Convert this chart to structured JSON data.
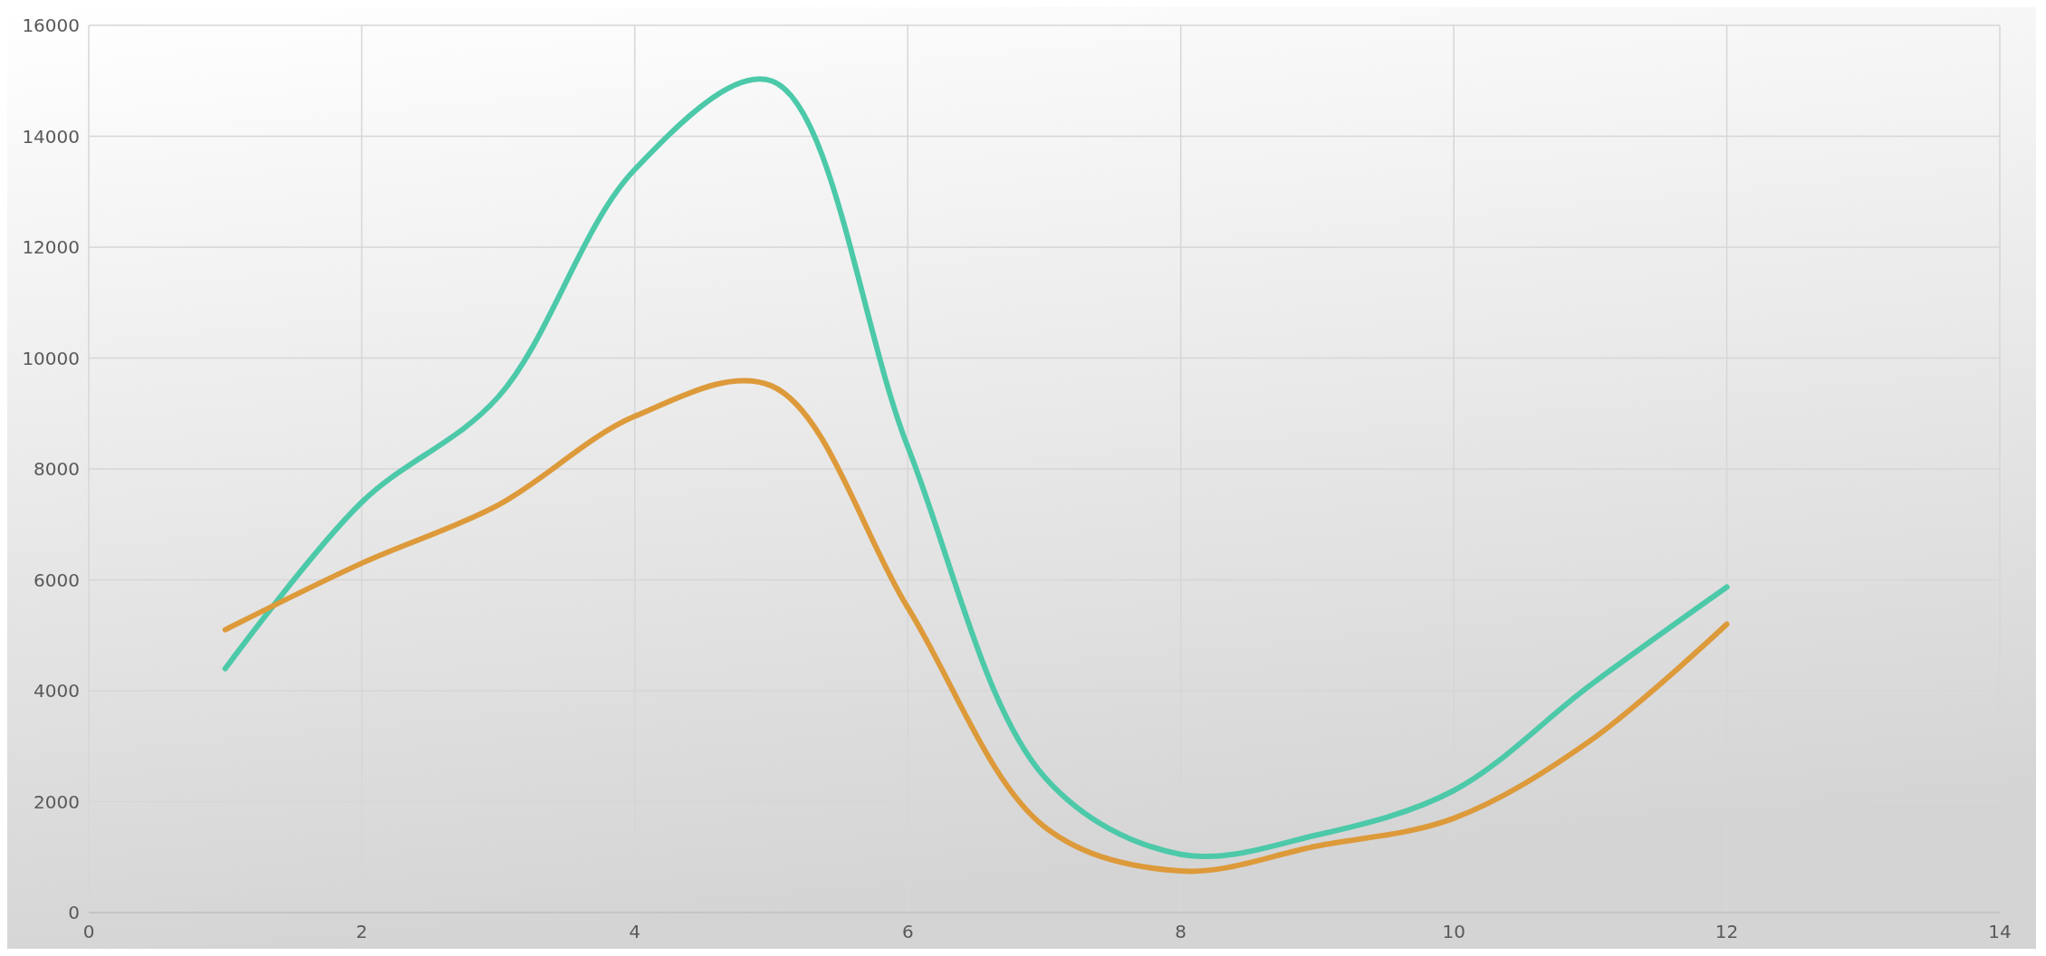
{
  "chart_data": {
    "type": "line",
    "x": [
      1,
      2,
      3,
      4,
      5,
      6,
      7,
      8,
      9,
      10,
      11,
      12
    ],
    "series": [
      {
        "color": "#4cc9a8",
        "values": [
          4400,
          7400,
          9300,
          13400,
          15000,
          8400,
          2450,
          1050,
          1400,
          2200,
          4100,
          5870
        ]
      },
      {
        "color": "#dd9a3a",
        "values": [
          5100,
          6300,
          7350,
          8950,
          9500,
          5500,
          1550,
          750,
          1200,
          1700,
          3100,
          5200
        ]
      }
    ],
    "xlim": [
      0,
      14
    ],
    "xticks": [
      0,
      2,
      4,
      6,
      8,
      10,
      12,
      14
    ],
    "ylim": [
      0,
      16000
    ],
    "yticks": [
      0,
      2000,
      4000,
      6000,
      8000,
      10000,
      12000,
      14000,
      16000
    ],
    "grid": true,
    "marker": "none",
    "line_style": "solid"
  }
}
